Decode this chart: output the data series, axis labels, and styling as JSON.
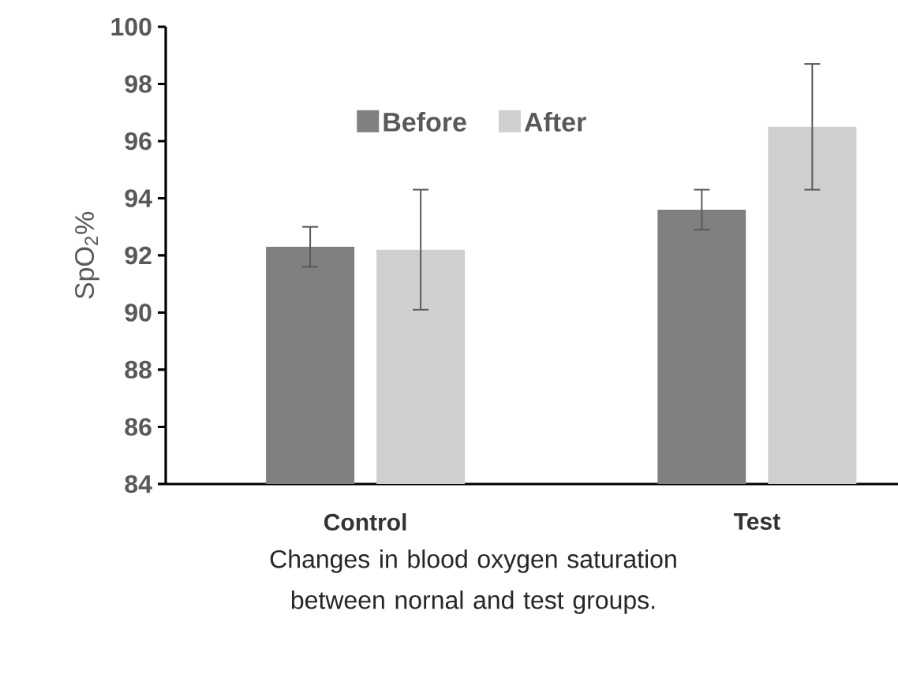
{
  "chart_data": {
    "type": "bar",
    "ylabel": "SpO$_{2}$%",
    "categories": [
      "Control",
      "Test"
    ],
    "series": [
      {
        "name": "Before",
        "color": "#808080",
        "values": [
          92.3,
          93.6
        ],
        "errors": [
          0.7,
          0.7
        ]
      },
      {
        "name": "After",
        "color": "#d0cecf",
        "values": [
          92.2,
          96.5
        ],
        "errors": [
          2.1,
          2.2
        ]
      }
    ],
    "ylim": [
      84,
      100
    ],
    "yticks": [
      84,
      86,
      88,
      90,
      92,
      94,
      96,
      98,
      100
    ],
    "grid": false,
    "legend": "top",
    "annotations": [
      "Changes in blood oxygen saturation between nornal and test groups."
    ]
  }
}
